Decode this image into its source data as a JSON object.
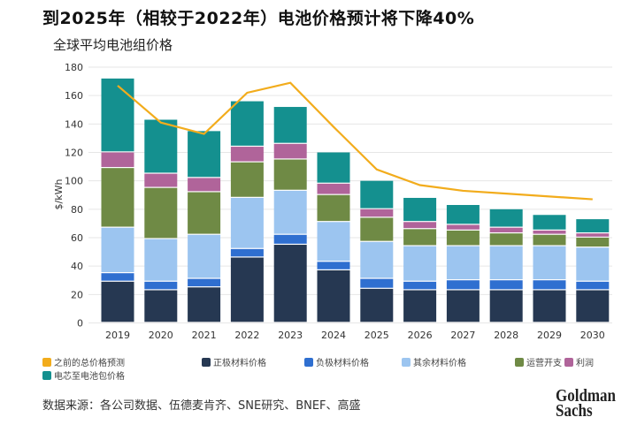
{
  "title": "到2025年（相较于2022年）电池价格预计将下降40%",
  "subtitle": "全球平均电池组价格",
  "source": "数据来源：各公司数据、伍德麦肯齐、SNE研究、BNEF、高盛",
  "logo": "Goldman Sachs",
  "chart_data": {
    "type": "bar",
    "stacked": true,
    "ylabel": "$/kWh",
    "xlabel": "",
    "ylim": [
      0,
      180
    ],
    "yticks": [
      0,
      20,
      40,
      60,
      80,
      100,
      120,
      140,
      160,
      180
    ],
    "grid": true,
    "legend_position": "bottom",
    "categories": [
      "2019",
      "2020",
      "2021",
      "2022",
      "2023",
      "2024",
      "2025",
      "2026",
      "2027",
      "2028",
      "2029",
      "2030"
    ],
    "series": [
      {
        "name": "正极材料价格",
        "color": "#263852",
        "values": [
          29,
          23,
          25,
          46,
          55,
          37,
          24,
          23,
          23,
          23,
          23,
          23
        ]
      },
      {
        "name": "负极材料价格",
        "color": "#2f6fd0",
        "values": [
          6,
          6,
          6,
          6,
          7,
          6,
          7,
          6,
          7,
          7,
          7,
          6
        ]
      },
      {
        "name": "其余材料价格",
        "color": "#9cc5f0",
        "values": [
          32,
          30,
          31,
          36,
          31,
          28,
          26,
          25,
          24,
          24,
          24,
          24
        ]
      },
      {
        "name": "运营开支",
        "color": "#6f8a45",
        "values": [
          42,
          36,
          30,
          25,
          22,
          19,
          17,
          12,
          11,
          9,
          8,
          7
        ]
      },
      {
        "name": "利润",
        "color": "#b0649a",
        "values": [
          11,
          10,
          10,
          11,
          11,
          8,
          6,
          5,
          4,
          4,
          3,
          3
        ]
      },
      {
        "name": "电芯至电池包价格",
        "color": "#14908f",
        "values": [
          52,
          38,
          33,
          32,
          26,
          22,
          20,
          17,
          14,
          13,
          11,
          10
        ]
      }
    ],
    "line": {
      "name": "之前的总价格预测",
      "color": "#f2ac1c",
      "values": [
        167,
        141,
        133,
        162,
        169,
        138,
        108,
        97,
        93,
        91,
        89,
        87
      ]
    }
  }
}
